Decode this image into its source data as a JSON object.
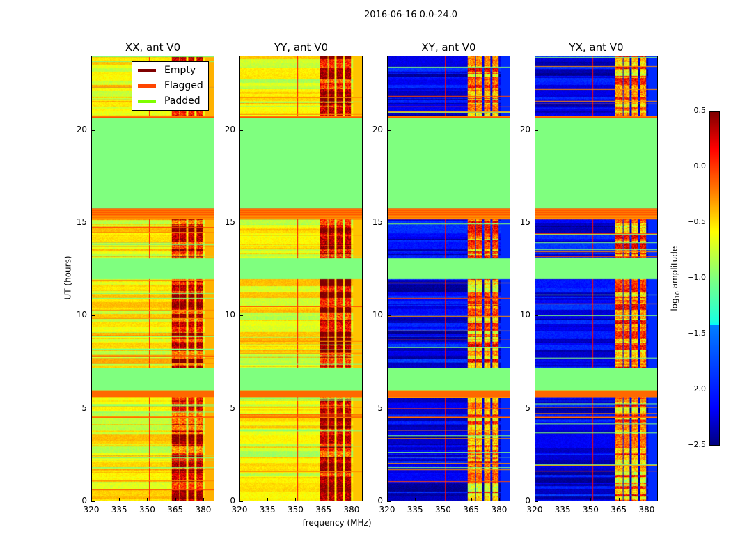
{
  "figure": {
    "suptitle": "2016-06-16 0.0-24.0",
    "xlabel": "frequency (MHz)",
    "ylabel": "UT (hours)"
  },
  "legend": {
    "items": [
      {
        "label": "Empty",
        "color": "#7f0000"
      },
      {
        "label": "Flagged",
        "color": "#ff4500"
      },
      {
        "label": "Padded",
        "color": "#7fff00"
      }
    ]
  },
  "colorbar": {
    "label_main": "log",
    "label_sub": "10",
    "label_rest": " amplitude",
    "ticks": [
      "0.5",
      "0.0",
      "−0.5",
      "−1.0",
      "−1.5",
      "−2.0",
      "−2.5"
    ],
    "range": [
      -2.5,
      0.5
    ],
    "cmap": "jet"
  },
  "chart_data": {
    "type": "heatmap",
    "xlabel": "frequency (MHz)",
    "ylabel": "UT (hours)",
    "xlim": [
      320,
      386
    ],
    "ylim": [
      0,
      24
    ],
    "xticks": [
      "320",
      "335",
      "350",
      "365",
      "380"
    ],
    "xtick_values": [
      320,
      335,
      350,
      365,
      380
    ],
    "yticks": [
      "0",
      "5",
      "10",
      "15",
      "20"
    ],
    "ytick_values": [
      0,
      5,
      10,
      15,
      20
    ],
    "zlim": [
      -2.5,
      0.5
    ],
    "panels": [
      {
        "title": "XX, ant V0",
        "base": -0.6,
        "hot": 0.2
      },
      {
        "title": "YY, ant V0",
        "base": -0.65,
        "hot": 0.25
      },
      {
        "title": "XY, ant V0",
        "base": -2.2,
        "hot": -0.3
      },
      {
        "title": "YX, ant V0",
        "base": -2.2,
        "hot": -0.3
      }
    ],
    "padded_hours": [
      [
        6.0,
        7.2
      ],
      [
        12.0,
        13.1
      ],
      [
        15.8,
        20.7
      ]
    ],
    "flagged_hours": [
      [
        5.6,
        6.0
      ],
      [
        15.2,
        15.8
      ],
      [
        20.7,
        20.8
      ],
      [
        4.5,
        4.55
      ]
    ],
    "hot_columns_mhz": [
      [
        363,
        367
      ],
      [
        367.5,
        371
      ],
      [
        372,
        375.5
      ],
      [
        376.5,
        380
      ]
    ]
  }
}
